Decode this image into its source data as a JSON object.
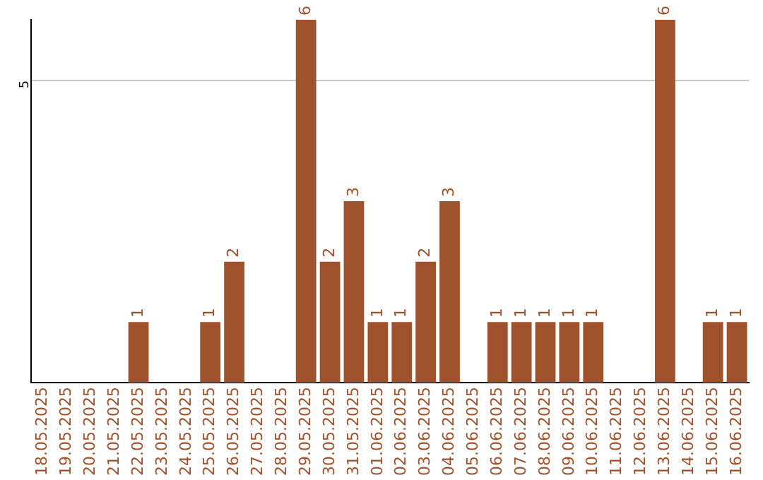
{
  "chart_data": {
    "type": "bar",
    "categories": [
      "18.05.2025",
      "19.05.2025",
      "20.05.2025",
      "21.05.2025",
      "22.05.2025",
      "23.05.2025",
      "24.05.2025",
      "25.05.2025",
      "26.05.2025",
      "27.05.2025",
      "28.05.2025",
      "29.05.2025",
      "30.05.2025",
      "31.05.2025",
      "01.06.2025",
      "02.06.2025",
      "03.06.2025",
      "04.06.2025",
      "05.06.2025",
      "06.06.2025",
      "07.06.2025",
      "08.06.2025",
      "09.06.2025",
      "10.06.2025",
      "11.06.2025",
      "12.06.2025",
      "13.06.2025",
      "14.06.2025",
      "15.06.2025",
      "16.06.2025"
    ],
    "values": [
      0,
      0,
      0,
      0,
      1,
      0,
      0,
      1,
      2,
      0,
      0,
      6,
      2,
      3,
      1,
      1,
      2,
      3,
      0,
      1,
      1,
      1,
      1,
      1,
      0,
      0,
      6,
      0,
      1,
      1
    ],
    "value_labels": [
      null,
      null,
      null,
      null,
      "1",
      null,
      null,
      "1",
      "2",
      null,
      null,
      "6",
      "2",
      "3",
      "1",
      "1",
      "2",
      "3",
      null,
      "1",
      "1",
      "1",
      "1",
      "1",
      null,
      null,
      "6",
      null,
      "1",
      "1"
    ],
    "color": "#a0522d",
    "ylim": [
      0,
      6
    ],
    "yticks": [
      5
    ],
    "grid": "y",
    "legend": false
  }
}
